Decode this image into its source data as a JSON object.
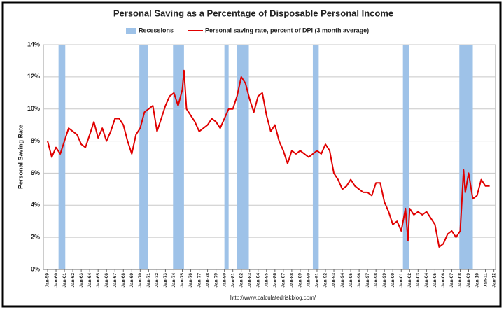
{
  "chart_data": {
    "type": "line",
    "title": "Personal Saving as a Percentage of Disposable Personal Income",
    "y_label": "Personal Saving Rate",
    "source": "http://www.calculatedriskblog.com/",
    "recession_label": "Recessions",
    "recession_color": "#9ec2e8",
    "recessions": [
      [
        1960.3,
        1961.1
      ],
      [
        1969.9,
        1970.9
      ],
      [
        1973.9,
        1975.2
      ],
      [
        1980.0,
        1980.5
      ],
      [
        1981.5,
        1982.9
      ],
      [
        1990.5,
        1991.2
      ],
      [
        2001.2,
        2001.9
      ],
      [
        2007.9,
        2009.5
      ]
    ],
    "x": [
      1959.0,
      1959.5,
      1960.0,
      1960.5,
      1961.0,
      1961.5,
      1962.0,
      1962.5,
      1963.0,
      1963.5,
      1964.0,
      1964.5,
      1965.0,
      1965.5,
      1966.0,
      1966.5,
      1967.0,
      1967.5,
      1968.0,
      1968.5,
      1969.0,
      1969.5,
      1970.0,
      1970.5,
      1971.0,
      1971.5,
      1972.0,
      1972.5,
      1973.0,
      1973.5,
      1974.0,
      1974.5,
      1975.0,
      1975.2,
      1975.5,
      1976.0,
      1976.5,
      1977.0,
      1977.5,
      1978.0,
      1978.5,
      1979.0,
      1979.5,
      1980.0,
      1980.5,
      1981.0,
      1981.5,
      1982.0,
      1982.5,
      1983.0,
      1983.5,
      1984.0,
      1984.5,
      1985.0,
      1985.5,
      1986.0,
      1986.5,
      1987.0,
      1987.5,
      1988.0,
      1988.5,
      1989.0,
      1989.5,
      1990.0,
      1990.5,
      1991.0,
      1991.5,
      1992.0,
      1992.5,
      1993.0,
      1993.5,
      1994.0,
      1994.5,
      1995.0,
      1995.5,
      1996.0,
      1996.5,
      1997.0,
      1997.5,
      1998.0,
      1998.5,
      1999.0,
      1999.5,
      2000.0,
      2000.5,
      2001.0,
      2001.5,
      2001.8,
      2002.0,
      2002.5,
      2003.0,
      2003.5,
      2004.0,
      2004.5,
      2005.0,
      2005.5,
      2006.0,
      2006.5,
      2007.0,
      2007.5,
      2008.0,
      2008.4,
      2008.6,
      2009.0,
      2009.5,
      2010.0,
      2010.5,
      2011.0,
      2011.5
    ],
    "series": [
      {
        "name": "Personal saving rate, percent of DPI (3 month average)",
        "color": "#e00000",
        "values": [
          8.0,
          7.0,
          7.6,
          7.2,
          8.0,
          8.8,
          8.6,
          8.4,
          7.8,
          7.6,
          8.4,
          9.2,
          8.2,
          8.8,
          8.0,
          8.6,
          9.4,
          9.4,
          9.0,
          8.0,
          7.2,
          8.4,
          8.8,
          9.8,
          10.0,
          10.2,
          8.6,
          9.4,
          10.2,
          10.8,
          11.0,
          10.2,
          11.2,
          12.4,
          10.0,
          9.6,
          9.2,
          8.6,
          8.8,
          9.0,
          9.4,
          9.2,
          8.8,
          9.4,
          10.0,
          10.0,
          10.8,
          12.0,
          11.6,
          10.6,
          9.8,
          10.8,
          11.0,
          9.6,
          8.6,
          9.0,
          8.0,
          7.4,
          6.6,
          7.4,
          7.2,
          7.4,
          7.2,
          7.0,
          7.2,
          7.4,
          7.2,
          7.8,
          7.4,
          6.0,
          5.6,
          5.0,
          5.2,
          5.6,
          5.2,
          5.0,
          4.8,
          4.8,
          4.6,
          5.4,
          5.4,
          4.2,
          3.6,
          2.8,
          3.0,
          2.4,
          3.8,
          1.8,
          3.8,
          3.4,
          3.6,
          3.4,
          3.6,
          3.2,
          2.8,
          1.4,
          1.6,
          2.2,
          2.4,
          2.0,
          2.4,
          6.2,
          4.8,
          6.0,
          4.4,
          4.6,
          5.6,
          5.2,
          5.2
        ]
      }
    ],
    "xlim": [
      1958.5,
      2012.2
    ],
    "xticks": [
      {
        "value": 1959,
        "label": "Jan-59"
      },
      {
        "value": 1960,
        "label": "Jan-60"
      },
      {
        "value": 1961,
        "label": "Jan-61"
      },
      {
        "value": 1962,
        "label": "Jan-62"
      },
      {
        "value": 1963,
        "label": "Jan-63"
      },
      {
        "value": 1964,
        "label": "Jan-64"
      },
      {
        "value": 1965,
        "label": "Jan-65"
      },
      {
        "value": 1966,
        "label": "Jan-66"
      },
      {
        "value": 1967,
        "label": "Jan-67"
      },
      {
        "value": 1968,
        "label": "Jan-68"
      },
      {
        "value": 1969,
        "label": "Jan-69"
      },
      {
        "value": 1970,
        "label": "Jan-70"
      },
      {
        "value": 1971,
        "label": "Jan-71"
      },
      {
        "value": 1972,
        "label": "Jan-72"
      },
      {
        "value": 1973,
        "label": "Jan-73"
      },
      {
        "value": 1974,
        "label": "Jan-74"
      },
      {
        "value": 1975,
        "label": "Jan-75"
      },
      {
        "value": 1976,
        "label": "Jan-76"
      },
      {
        "value": 1977,
        "label": "Jan-77"
      },
      {
        "value": 1978,
        "label": "Jan-78"
      },
      {
        "value": 1979,
        "label": "Jan-79"
      },
      {
        "value": 1980,
        "label": "Jan-80"
      },
      {
        "value": 1981,
        "label": "Jan-81"
      },
      {
        "value": 1982,
        "label": "Jan-82"
      },
      {
        "value": 1983,
        "label": "Jan-83"
      },
      {
        "value": 1984,
        "label": "Jan-84"
      },
      {
        "value": 1985,
        "label": "Jan-85"
      },
      {
        "value": 1986,
        "label": "Jan-86"
      },
      {
        "value": 1987,
        "label": "Jan-87"
      },
      {
        "value": 1988,
        "label": "Jan-88"
      },
      {
        "value": 1989,
        "label": "Jan-89"
      },
      {
        "value": 1990,
        "label": "Jan-90"
      },
      {
        "value": 1991,
        "label": "Jan-91"
      },
      {
        "value": 1992,
        "label": "Jan-92"
      },
      {
        "value": 1993,
        "label": "Jan-93"
      },
      {
        "value": 1994,
        "label": "Jan-94"
      },
      {
        "value": 1995,
        "label": "Jan-95"
      },
      {
        "value": 1996,
        "label": "Jan-96"
      },
      {
        "value": 1997,
        "label": "Jan-97"
      },
      {
        "value": 1998,
        "label": "Jan-98"
      },
      {
        "value": 1999,
        "label": "Jan-99"
      },
      {
        "value": 2000,
        "label": "Jan-00"
      },
      {
        "value": 2001,
        "label": "Jan-01"
      },
      {
        "value": 2002,
        "label": "Jan-02"
      },
      {
        "value": 2003,
        "label": "Jan-03"
      },
      {
        "value": 2004,
        "label": "Jan-04"
      },
      {
        "value": 2005,
        "label": "Jan-05"
      },
      {
        "value": 2006,
        "label": "Jan-06"
      },
      {
        "value": 2007,
        "label": "Jan-07"
      },
      {
        "value": 2008,
        "label": "Jan-08"
      },
      {
        "value": 2009,
        "label": "Jan-09"
      },
      {
        "value": 2010,
        "label": "Jan-10"
      },
      {
        "value": 2011,
        "label": "Jan-11"
      },
      {
        "value": 2012,
        "label": "Jan-12"
      }
    ],
    "ylim": [
      0,
      14
    ],
    "yticks": [
      {
        "value": 0,
        "label": "0%"
      },
      {
        "value": 2,
        "label": "2%"
      },
      {
        "value": 4,
        "label": "4%"
      },
      {
        "value": 6,
        "label": "6%"
      },
      {
        "value": 8,
        "label": "8%"
      },
      {
        "value": 10,
        "label": "10%"
      },
      {
        "value": 12,
        "label": "12%"
      },
      {
        "value": 14,
        "label": "14%"
      }
    ],
    "grid": true
  }
}
